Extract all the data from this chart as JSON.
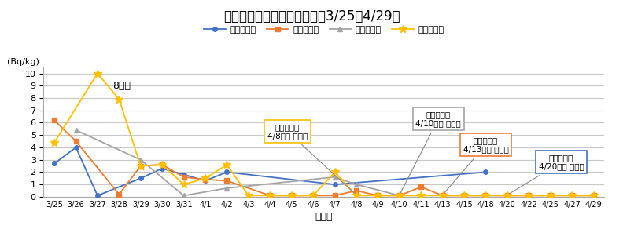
{
  "title": "放射性セシウムの測定結果（3/25～4/29）",
  "xlabel": "採水日",
  "ylabel": "(Bq/kg)",
  "ylim": [
    0,
    10.5
  ],
  "yticks": [
    0.0,
    1.0,
    2.0,
    3.0,
    4.0,
    5.0,
    6.0,
    7.0,
    8.0,
    9.0,
    10.0
  ],
  "x_labels": [
    "3/25",
    "3/26",
    "3/27",
    "3/28",
    "3/29",
    "3/30",
    "3/31",
    "4/1",
    "4/2",
    "4/3",
    "4/4",
    "4/5",
    "4/6",
    "4/7",
    "4/8",
    "4/9",
    "4/10",
    "4/11",
    "4/13",
    "4/15",
    "4/18",
    "4/20",
    "4/22",
    "4/25",
    "4/27",
    "4/29"
  ],
  "series": {
    "若柴配水場": {
      "color": "#4472C4",
      "marker": "o",
      "markersize": 4,
      "values": [
        2.7,
        4.0,
        0.1,
        null,
        1.5,
        2.3,
        1.8,
        1.3,
        2.0,
        null,
        null,
        null,
        null,
        1.0,
        null,
        null,
        null,
        null,
        null,
        null,
        2.0,
        null,
        null,
        null,
        null,
        null
      ]
    },
    "牛久配水場": {
      "color": "#ED7D31",
      "marker": "s",
      "markersize": 4,
      "values": [
        6.2,
        4.5,
        null,
        0.2,
        2.5,
        2.6,
        1.6,
        1.4,
        1.3,
        null,
        0.1,
        0.1,
        0.1,
        0.1,
        0.5,
        0.1,
        0.1,
        0.8,
        0.1,
        0.1,
        0.1,
        0.1,
        0.1,
        0.1,
        0.1,
        0.1
      ]
    },
    "戸頭配水場": {
      "color": "#A5A5A5",
      "marker": "^",
      "markersize": 5,
      "values": [
        null,
        5.4,
        null,
        null,
        3.0,
        null,
        0.1,
        null,
        0.7,
        null,
        null,
        null,
        null,
        1.6,
        1.0,
        null,
        0.1,
        null,
        null,
        null,
        null,
        null,
        null,
        null,
        null,
        null
      ]
    },
    "藤代配水場": {
      "color": "#FFC000",
      "marker": "*",
      "markersize": 7,
      "values": [
        4.4,
        null,
        10.0,
        7.9,
        2.5,
        2.6,
        1.0,
        1.5,
        2.6,
        0.1,
        0.1,
        0.1,
        0.1,
        2.0,
        0.1,
        0.1,
        0.1,
        0.1,
        0.1,
        0.1,
        0.1,
        0.1,
        0.1,
        0.1,
        0.1,
        0.1
      ]
    }
  },
  "background_color": "#FFFFFF",
  "grid_color": "#C8C8C8"
}
